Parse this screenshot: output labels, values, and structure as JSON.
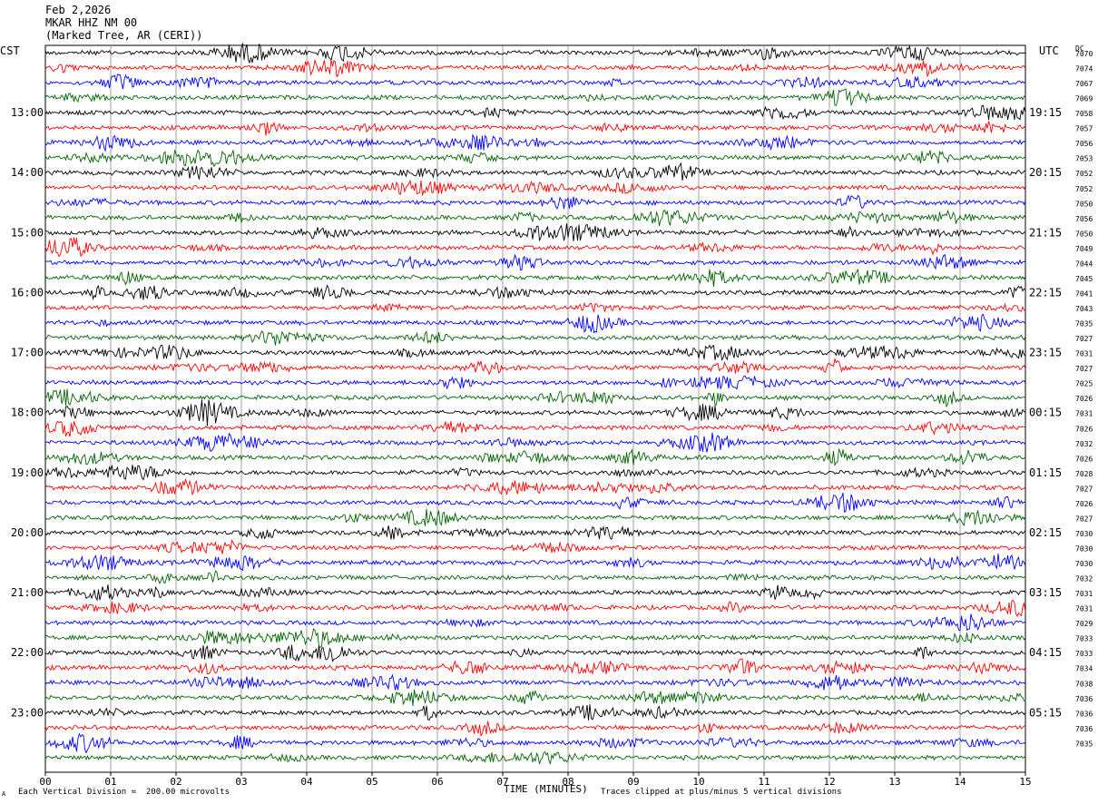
{
  "header": {
    "date": "Feb 2,2026",
    "station": "MKAR HHZ NM 00",
    "location": "(Marked Tree, AR (CERI))"
  },
  "left_tz": "CST",
  "right_tz": "UTC",
  "dc_label": "DC",
  "footer": {
    "left": "Each Vertical Division =  200.00 microvolts",
    "right": "Traces clipped at plus/minus 5 vertical divisions",
    "corner": "A"
  },
  "colors": {
    "traces": [
      "#000000",
      "#ff0000",
      "#0000ff",
      "#006400"
    ],
    "grid": "#888888"
  },
  "chart_data": {
    "type": "line",
    "title": "MKAR HHZ NM 00",
    "xlabel": "TIME (MINUTES)",
    "xlim": [
      0,
      15
    ],
    "x_ticks": [
      "00",
      "01",
      "02",
      "03",
      "04",
      "05",
      "06",
      "07",
      "08",
      "09",
      "10",
      "11",
      "12",
      "13",
      "14",
      "15"
    ],
    "rows_per_hour": 4,
    "row_count": 48,
    "left_hour_labels": [
      "13:00",
      "14:00",
      "15:00",
      "16:00",
      "17:00",
      "18:00",
      "19:00",
      "20:00",
      "21:00",
      "22:00",
      "23:00"
    ],
    "right_hour_labels": [
      "19:15",
      "20:15",
      "21:15",
      "22:15",
      "23:15",
      "00:15",
      "01:15",
      "02:15",
      "03:15",
      "04:15",
      "05:15"
    ],
    "dc_offsets": [
      "7070",
      "7074",
      "7067",
      "7069",
      "7058",
      "7057",
      "7056",
      "7053",
      "7052",
      "7052",
      "7050",
      "7056",
      "7050",
      "7049",
      "7044",
      "7045",
      "7041",
      "7043",
      "7035",
      "7027",
      "7031",
      "7027",
      "7025",
      "7026",
      "7031",
      "7026",
      "7032",
      "7026",
      "7028",
      "7027",
      "7026",
      "7027",
      "7030",
      "7030",
      "7030",
      "7032",
      "7031",
      "7031",
      "7029",
      "7033",
      "7033",
      "7034",
      "7038",
      "7036",
      "7036",
      "7036",
      "7035"
    ]
  }
}
